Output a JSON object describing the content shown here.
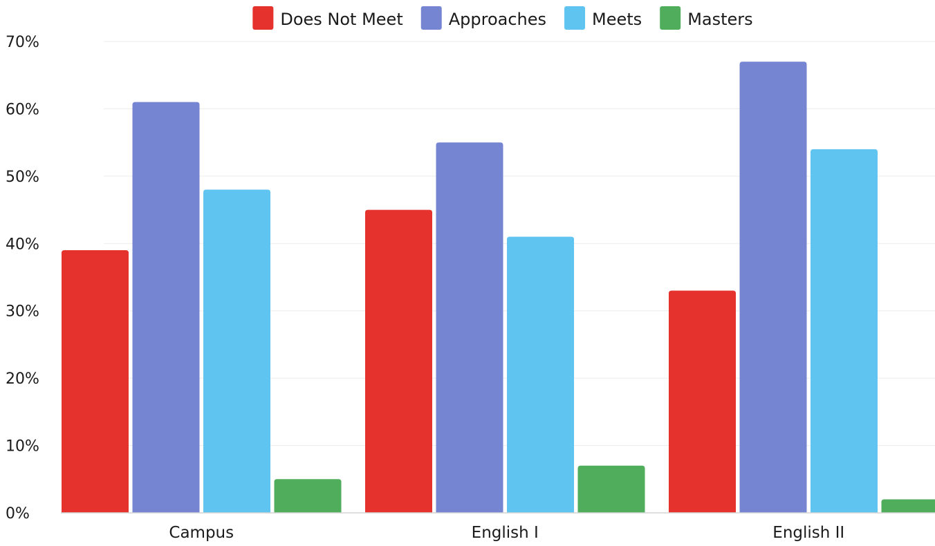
{
  "chart_data": {
    "type": "bar",
    "categories": [
      "Campus",
      "English I",
      "English II"
    ],
    "series": [
      {
        "name": "Does Not Meet",
        "color": "#e5322c",
        "values": [
          39,
          45,
          33
        ]
      },
      {
        "name": "Approaches",
        "color": "#7685d2",
        "values": [
          61,
          55,
          67
        ]
      },
      {
        "name": "Meets",
        "color": "#5fc4f0",
        "values": [
          48,
          41,
          54
        ]
      },
      {
        "name": "Masters",
        "color": "#4fad5b",
        "values": [
          5,
          7,
          2
        ]
      }
    ],
    "ylim": [
      0,
      70
    ],
    "yticks": [
      "0%",
      "10%",
      "20%",
      "30%",
      "40%",
      "50%",
      "60%",
      "70%"
    ],
    "title": "",
    "xlabel": "",
    "ylabel": "",
    "grid": true,
    "legend_position": "top-center"
  }
}
